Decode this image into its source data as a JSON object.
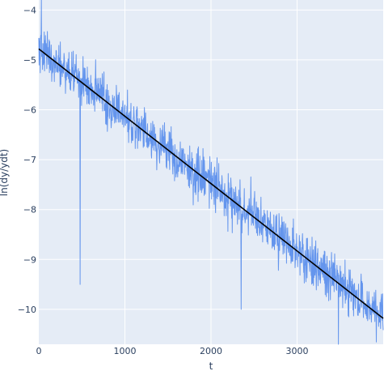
{
  "chart_data": {
    "type": "line",
    "title": "",
    "xlabel": "t",
    "ylabel": "ln(dy/ydt)",
    "xlim": [
      0,
      4000
    ],
    "ylim": [
      -10.7,
      -3.8
    ],
    "x_ticks": [
      0,
      1000,
      2000,
      3000
    ],
    "x_tick_labels": [
      "0",
      "1000",
      "2000",
      "3000"
    ],
    "y_ticks": [
      -4,
      -5,
      -6,
      -7,
      -8,
      -9,
      -10
    ],
    "y_tick_labels": [
      "−4",
      "−5",
      "−6",
      "−7",
      "−8",
      "−9",
      "−10"
    ],
    "grid": true,
    "legend": "none",
    "colors": {
      "background": "#e5ecf6",
      "grid": "#ffffff",
      "data": "#6495ed",
      "fit": "#000000",
      "text": "#2a3f5f"
    },
    "series": [
      {
        "style": "noisy-line",
        "color": "#6495ed",
        "x_range": [
          0,
          4000
        ],
        "trend": {
          "intercept": -4.78,
          "slope": -0.00135
        },
        "noise_std": 0.4,
        "notable_points": [
          {
            "x": 30,
            "y": -3.8
          },
          {
            "x": 480,
            "y": -9.5
          },
          {
            "x": 2350,
            "y": -10.0
          },
          {
            "x": 3480,
            "y": -10.7
          }
        ]
      },
      {
        "style": "line",
        "color": "#000000",
        "x": [
          0,
          4000
        ],
        "y": [
          -4.78,
          -10.18
        ]
      }
    ]
  }
}
